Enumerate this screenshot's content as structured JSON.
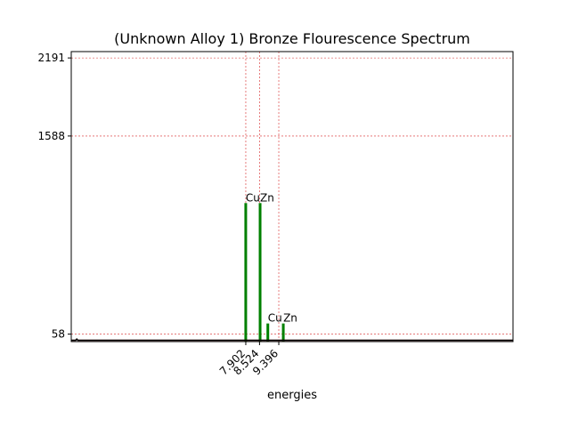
{
  "chart_data": {
    "type": "line",
    "title": "(Unknown Alloy 1) Bronze Flourescence Spectrum",
    "xlabel": "energies",
    "ylabel": "",
    "xlim": [
      0.0,
      20.0
    ],
    "ylim": [
      0,
      2240
    ],
    "x_ticks": [
      7.902,
      8.524,
      9.396
    ],
    "x_tick_labels": [
      "7.902",
      "8.524",
      "9.396"
    ],
    "y_ticks": [
      58,
      1588,
      2191
    ],
    "y_tick_labels": [
      "58",
      "1588",
      "2191"
    ],
    "grid": "dashed lines at tick positions",
    "colors": {
      "spectrum": "#000000",
      "spectrum_overlay": "#d62728",
      "peak_bars": "#008000",
      "grid": "#d62728"
    },
    "series": [
      {
        "x": [
          0.0,
          0.2,
          0.25,
          0.3,
          0.5,
          1.0,
          1.5,
          2.0,
          2.5,
          3.0,
          3.5,
          4.0,
          4.5,
          5.0,
          5.5,
          6.0,
          6.5,
          7.0,
          7.2,
          7.4,
          7.6,
          7.7,
          7.8,
          7.85,
          7.9,
          7.95,
          8.0,
          8.1,
          8.2,
          8.3,
          8.4,
          8.5,
          8.55,
          8.6,
          8.7,
          8.8,
          8.9,
          9.0,
          9.1,
          9.2,
          9.3,
          9.35,
          9.4,
          9.5,
          9.7,
          10.0,
          11.0,
          12.0,
          13.0,
          14.0,
          15.0,
          16.0,
          17.0,
          18.0,
          19.0,
          20.0
        ],
        "y": [
          10,
          10,
          20,
          10,
          10,
          10,
          10,
          10,
          10,
          10,
          10,
          10,
          10,
          10,
          10,
          10,
          10,
          10,
          10,
          10,
          10,
          10,
          10,
          10,
          10,
          10,
          10,
          10,
          10,
          10,
          10,
          10,
          10,
          10,
          10,
          10,
          10,
          10,
          10,
          10,
          10,
          10,
          10,
          10,
          10,
          10,
          10,
          10,
          10,
          10,
          10,
          10,
          10,
          10,
          10,
          10
        ]
      }
    ],
    "peaks": [
      {
        "x": 7.9,
        "y": 1070,
        "label": "Cu"
      },
      {
        "x": 8.55,
        "y": 1070,
        "label": "Zn"
      },
      {
        "x": 8.9,
        "y": 140,
        "label": "Cu"
      },
      {
        "x": 9.6,
        "y": 140,
        "label": "Zn"
      }
    ]
  }
}
